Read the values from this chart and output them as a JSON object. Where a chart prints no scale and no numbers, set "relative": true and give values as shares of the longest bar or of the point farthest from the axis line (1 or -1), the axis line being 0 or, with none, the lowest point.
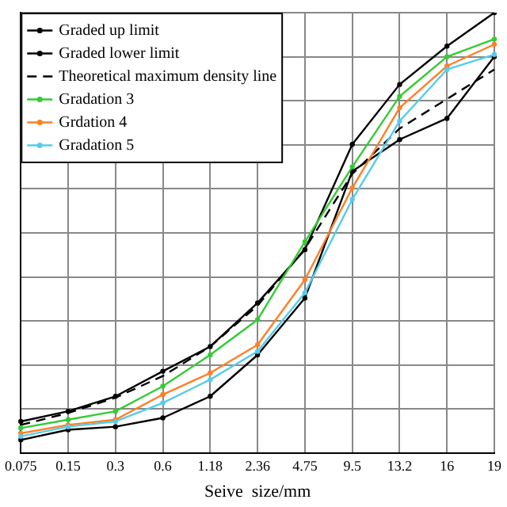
{
  "chart_data": {
    "type": "line",
    "xlabel": "Seive  size/mm",
    "relative": true,
    "categories": [
      "0.075",
      "0.15",
      "0.3",
      "0.6",
      "1.18",
      "2.36",
      "4.75",
      "9.5",
      "13.2",
      "16",
      "19"
    ],
    "series": [
      {
        "name": "Graded up limit",
        "color": "#000000",
        "marker": "circle",
        "values": [
          0.072,
          0.095,
          0.129,
          0.186,
          0.242,
          0.341,
          0.462,
          0.701,
          0.837,
          0.924,
          1
        ]
      },
      {
        "name": "Graded lower limit",
        "color": "#000000",
        "marker": "circle",
        "values": [
          0.03,
          0.053,
          0.06,
          0.08,
          0.129,
          0.223,
          0.352,
          0.64,
          0.712,
          0.76,
          0.9
        ]
      },
      {
        "name": "Theoretical maximum density line",
        "color": "#000000",
        "marker": "none",
        "line_style": "dashed",
        "values": [
          0.064,
          0.091,
          0.126,
          0.175,
          0.242,
          0.335,
          0.464,
          0.634,
          0.737,
          0.804,
          0.871
        ]
      },
      {
        "name": "Gradation 3",
        "color": "#33cc33",
        "marker": "circle",
        "values": [
          0.057,
          0.076,
          0.095,
          0.152,
          0.223,
          0.303,
          0.48,
          0.65,
          0.81,
          0.9,
          0.94
        ]
      },
      {
        "name": "Grdation 4",
        "color": "#ff7f27",
        "marker": "circle",
        "values": [
          0.045,
          0.064,
          0.076,
          0.133,
          0.182,
          0.246,
          0.394,
          0.602,
          0.784,
          0.879,
          0.928
        ]
      },
      {
        "name": "Gradation 5",
        "color": "#55ccee",
        "marker": "circle",
        "values": [
          0.038,
          0.06,
          0.072,
          0.114,
          0.167,
          0.231,
          0.364,
          0.576,
          0.754,
          0.871,
          0.905
        ]
      }
    ],
    "grid": true,
    "legend": "top left",
    "tick_labels": "x",
    "line_style": "solid"
  }
}
